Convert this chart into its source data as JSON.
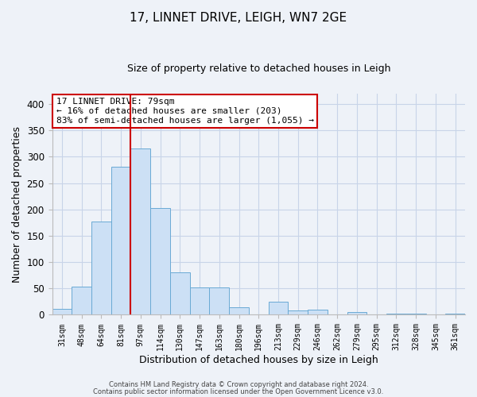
{
  "title": "17, LINNET DRIVE, LEIGH, WN7 2GE",
  "subtitle": "Size of property relative to detached houses in Leigh",
  "xlabel": "Distribution of detached houses by size in Leigh",
  "ylabel": "Number of detached properties",
  "bar_color": "#cce0f5",
  "bar_edge_color": "#6aaad4",
  "categories": [
    "31sqm",
    "48sqm",
    "64sqm",
    "81sqm",
    "97sqm",
    "114sqm",
    "130sqm",
    "147sqm",
    "163sqm",
    "180sqm",
    "196sqm",
    "213sqm",
    "229sqm",
    "246sqm",
    "262sqm",
    "279sqm",
    "295sqm",
    "312sqm",
    "328sqm",
    "345sqm",
    "361sqm"
  ],
  "values": [
    12,
    54,
    177,
    281,
    315,
    203,
    81,
    52,
    52,
    15,
    0,
    25,
    8,
    10,
    0,
    5,
    0,
    2,
    2,
    1,
    2
  ],
  "ylim": [
    0,
    420
  ],
  "yticks": [
    0,
    50,
    100,
    150,
    200,
    250,
    300,
    350,
    400
  ],
  "vline_x_index": 3,
  "vline_color": "#cc0000",
  "annotation_title": "17 LINNET DRIVE: 79sqm",
  "annotation_line1": "← 16% of detached houses are smaller (203)",
  "annotation_line2": "83% of semi-detached houses are larger (1,055) →",
  "annotation_box_edge": "#cc0000",
  "footer1": "Contains HM Land Registry data © Crown copyright and database right 2024.",
  "footer2": "Contains public sector information licensed under the Open Government Licence v3.0.",
  "background_color": "#eef2f8",
  "plot_background": "#eef2f8",
  "grid_color": "#c8d4e8"
}
